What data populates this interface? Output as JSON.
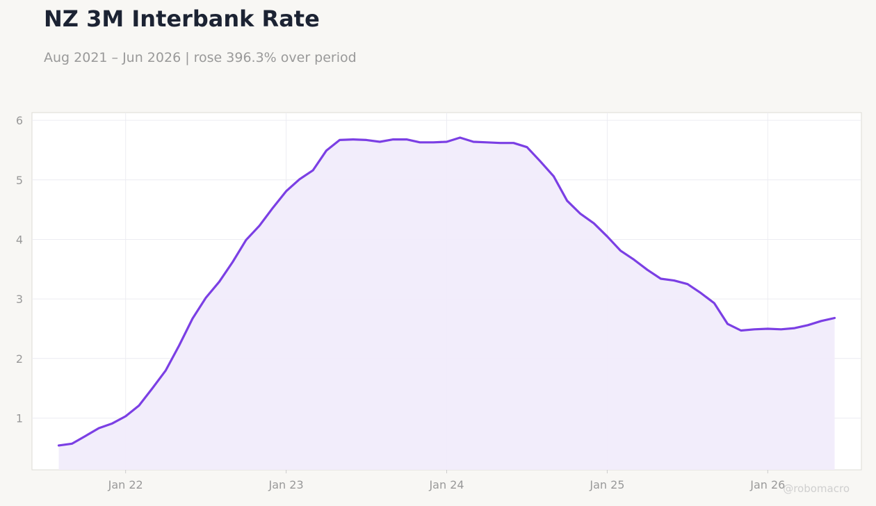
{
  "header": {
    "title": "NZ 3M Interbank Rate",
    "subtitle": "Aug 2021 – Jun 2026 | rose 396.3% over period"
  },
  "watermark": "@robomacro",
  "colors": {
    "line": "#7b3fe4",
    "fill": "#f1ecfb",
    "plot_background": "#ffffff",
    "page_background": "#f8f7f4",
    "grid": "#ececf2",
    "tick_text": "#999999"
  },
  "chart_data": {
    "type": "area",
    "title": "NZ 3M Interbank Rate",
    "subtitle": "Aug 2021 – Jun 2026 | rose 396.3% over period",
    "xlabel": "",
    "ylabel": "",
    "grid": true,
    "legend": "none",
    "x_ticks": [
      {
        "date": "2022-01",
        "label": "Jan 22"
      },
      {
        "date": "2023-01",
        "label": "Jan 23"
      },
      {
        "date": "2024-01",
        "label": "Jan 24"
      },
      {
        "date": "2025-01",
        "label": "Jan 25"
      },
      {
        "date": "2026-01",
        "label": "Jan 26"
      }
    ],
    "y_ticks": [
      1,
      2,
      3,
      4,
      5,
      6
    ],
    "xlim": [
      "2021-06",
      "2026-08"
    ],
    "ylim": [
      0.13,
      6.13
    ],
    "series": [
      {
        "color": "#7b3fe4",
        "points": [
          [
            "2021-08",
            0.54
          ],
          [
            "2021-09",
            0.57
          ],
          [
            "2021-10",
            0.7
          ],
          [
            "2021-11",
            0.83
          ],
          [
            "2021-12",
            0.91
          ],
          [
            "2022-01",
            1.03
          ],
          [
            "2022-02",
            1.21
          ],
          [
            "2022-03",
            1.5
          ],
          [
            "2022-04",
            1.8
          ],
          [
            "2022-05",
            2.22
          ],
          [
            "2022-06",
            2.67
          ],
          [
            "2022-07",
            3.02
          ],
          [
            "2022-08",
            3.29
          ],
          [
            "2022-09",
            3.62
          ],
          [
            "2022-10",
            3.99
          ],
          [
            "2022-11",
            4.23
          ],
          [
            "2022-12",
            4.53
          ],
          [
            "2023-01",
            4.81
          ],
          [
            "2023-02",
            5.01
          ],
          [
            "2023-03",
            5.16
          ],
          [
            "2023-04",
            5.49
          ],
          [
            "2023-05",
            5.67
          ],
          [
            "2023-06",
            5.68
          ],
          [
            "2023-07",
            5.67
          ],
          [
            "2023-08",
            5.64
          ],
          [
            "2023-09",
            5.68
          ],
          [
            "2023-10",
            5.68
          ],
          [
            "2023-11",
            5.63
          ],
          [
            "2023-12",
            5.63
          ],
          [
            "2024-01",
            5.64
          ],
          [
            "2024-02",
            5.71
          ],
          [
            "2024-03",
            5.64
          ],
          [
            "2024-04",
            5.63
          ],
          [
            "2024-05",
            5.62
          ],
          [
            "2024-06",
            5.62
          ],
          [
            "2024-07",
            5.55
          ],
          [
            "2024-08",
            5.31
          ],
          [
            "2024-09",
            5.06
          ],
          [
            "2024-10",
            4.65
          ],
          [
            "2024-11",
            4.43
          ],
          [
            "2024-12",
            4.27
          ],
          [
            "2025-01",
            4.05
          ],
          [
            "2025-02",
            3.81
          ],
          [
            "2025-03",
            3.66
          ],
          [
            "2025-04",
            3.49
          ],
          [
            "2025-05",
            3.34
          ],
          [
            "2025-06",
            3.31
          ],
          [
            "2025-07",
            3.25
          ],
          [
            "2025-08",
            3.1
          ],
          [
            "2025-09",
            2.93
          ],
          [
            "2025-10",
            2.58
          ],
          [
            "2025-11",
            2.47
          ],
          [
            "2025-12",
            2.49
          ],
          [
            "2026-01",
            2.5
          ],
          [
            "2026-02",
            2.49
          ],
          [
            "2026-03",
            2.51
          ],
          [
            "2026-04",
            2.56
          ],
          [
            "2026-05",
            2.63
          ],
          [
            "2026-06",
            2.68
          ]
        ]
      }
    ]
  }
}
